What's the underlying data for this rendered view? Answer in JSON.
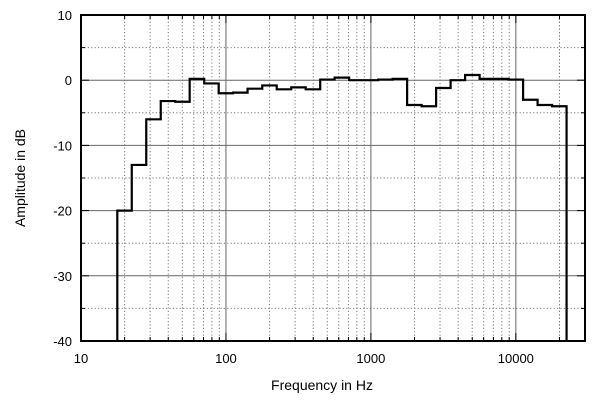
{
  "chart_data": {
    "type": "line",
    "xscale": "log",
    "xlim": [
      10,
      30000
    ],
    "ylim": [
      -40,
      10
    ],
    "xlabel": "Frequency in Hz",
    "ylabel": "Amplitude in dB",
    "grid": true,
    "x_tick_labels": [
      "10",
      "100",
      "1000",
      "10000"
    ],
    "y_tick_labels": [
      "10",
      "0",
      "-10",
      "-20",
      "-30",
      "-40"
    ],
    "series": [
      {
        "style": "step",
        "bands": [
          {
            "lo": 17.8,
            "hi": 22.4,
            "value": -20.0
          },
          {
            "lo": 22.4,
            "hi": 28.2,
            "value": -13.0
          },
          {
            "lo": 28.2,
            "hi": 35.5,
            "value": -6.0
          },
          {
            "lo": 35.5,
            "hi": 44.7,
            "value": -3.2
          },
          {
            "lo": 44.7,
            "hi": 56.2,
            "value": -3.3
          },
          {
            "lo": 56.2,
            "hi": 70.8,
            "value": 0.2
          },
          {
            "lo": 70.8,
            "hi": 89.1,
            "value": -0.5
          },
          {
            "lo": 89.1,
            "hi": 112,
            "value": -2.0
          },
          {
            "lo": 112,
            "hi": 141,
            "value": -1.9
          },
          {
            "lo": 141,
            "hi": 178,
            "value": -1.3
          },
          {
            "lo": 178,
            "hi": 224,
            "value": -0.8
          },
          {
            "lo": 224,
            "hi": 282,
            "value": -1.4
          },
          {
            "lo": 282,
            "hi": 355,
            "value": -1.1
          },
          {
            "lo": 355,
            "hi": 447,
            "value": -1.4
          },
          {
            "lo": 447,
            "hi": 562,
            "value": 0.1
          },
          {
            "lo": 562,
            "hi": 708,
            "value": 0.4
          },
          {
            "lo": 708,
            "hi": 891,
            "value": 0.0
          },
          {
            "lo": 891,
            "hi": 1122,
            "value": 0.0
          },
          {
            "lo": 1122,
            "hi": 1413,
            "value": 0.1
          },
          {
            "lo": 1413,
            "hi": 1778,
            "value": 0.2
          },
          {
            "lo": 1778,
            "hi": 2239,
            "value": -3.8
          },
          {
            "lo": 2239,
            "hi": 2818,
            "value": -4.0
          },
          {
            "lo": 2818,
            "hi": 3548,
            "value": -1.2
          },
          {
            "lo": 3548,
            "hi": 4467,
            "value": 0.0
          },
          {
            "lo": 4467,
            "hi": 5623,
            "value": 0.8
          },
          {
            "lo": 5623,
            "hi": 7079,
            "value": 0.2
          },
          {
            "lo": 7079,
            "hi": 8913,
            "value": 0.2
          },
          {
            "lo": 8913,
            "hi": 11220,
            "value": 0.1
          },
          {
            "lo": 11220,
            "hi": 14125,
            "value": -3.0
          },
          {
            "lo": 14125,
            "hi": 17783,
            "value": -3.8
          },
          {
            "lo": 17783,
            "hi": 22387,
            "value": -4.0
          }
        ]
      }
    ]
  }
}
